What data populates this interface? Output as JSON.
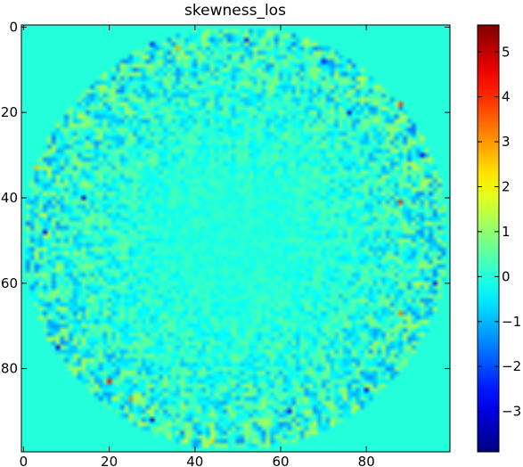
{
  "chart_data": {
    "type": "heatmap",
    "title": "skewness_los",
    "xlabel": "",
    "ylabel": "",
    "x_ticks": [
      "0",
      "20",
      "40",
      "60",
      "80"
    ],
    "x_tick_values": [
      0,
      20,
      40,
      60,
      80
    ],
    "y_ticks": [
      "0",
      "20",
      "40",
      "60",
      "80"
    ],
    "y_tick_values": [
      0,
      20,
      40,
      60,
      80
    ],
    "xlim": [
      -0.5,
      99.5
    ],
    "ylim": [
      99.5,
      -0.5
    ],
    "grid_size": [
      100,
      100
    ],
    "colormap": "jet",
    "colorbar": {
      "range": [
        -3.9,
        5.6
      ],
      "ticks": [
        "−3",
        "−2",
        "−1",
        "0",
        "1",
        "2",
        "3",
        "4",
        "5"
      ],
      "tick_values": [
        -3,
        -2,
        -1,
        0,
        1,
        2,
        3,
        4,
        5
      ]
    },
    "background_value": 0,
    "disk": {
      "center": [
        49.5,
        49.5
      ],
      "radius": 49.5
    },
    "extreme_pixels": [
      {
        "x": 20,
        "y": 83,
        "value": 4.4
      },
      {
        "x": 25,
        "y": 87,
        "value": 3.2
      },
      {
        "x": 88,
        "y": 41,
        "value": 4.1
      },
      {
        "x": 88,
        "y": 67,
        "value": 3.3
      },
      {
        "x": 88,
        "y": 18,
        "value": 3.8
      },
      {
        "x": 36,
        "y": 5,
        "value": 2.8
      },
      {
        "x": 3,
        "y": 33,
        "value": 2.6
      },
      {
        "x": 44,
        "y": 97,
        "value": 2.4
      },
      {
        "x": 30,
        "y": 92,
        "value": -3.4
      },
      {
        "x": 76,
        "y": 20,
        "value": -3.2
      },
      {
        "x": 14,
        "y": 40,
        "value": -3.1
      },
      {
        "x": 8,
        "y": 75,
        "value": -3.0
      },
      {
        "x": 62,
        "y": 90,
        "value": -2.9
      },
      {
        "x": 93,
        "y": 30,
        "value": -3.0
      },
      {
        "x": 30,
        "y": 4,
        "value": -2.6
      },
      {
        "x": 52,
        "y": 3,
        "value": -2.5
      },
      {
        "x": 70,
        "y": 8,
        "value": -2.8
      },
      {
        "x": 5,
        "y": 48,
        "value": -2.7
      },
      {
        "x": 96,
        "y": 60,
        "value": -2.6
      },
      {
        "x": 80,
        "y": 85,
        "value": -2.8
      }
    ]
  }
}
